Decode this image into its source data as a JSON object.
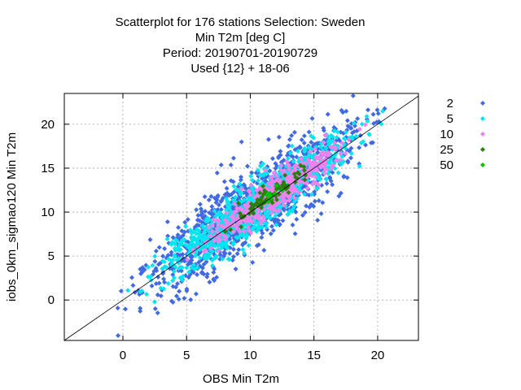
{
  "chart_data": {
    "type": "scatter",
    "title_lines": [
      "Scatterplot for  176 stations Selection: Sweden",
      "Min T2m [deg C]",
      "Period: 20190701-20190729",
      "Used {12} + 18-06"
    ],
    "xlabel": "OBS Min T2m",
    "ylabel": "iobs_0km_sigmao120 Min T2m",
    "xlim": [
      -4.6,
      23.2
    ],
    "ylim": [
      -4.6,
      23.5
    ],
    "xticks": [
      "0",
      "5",
      "10",
      "15",
      "20"
    ],
    "yticks": [
      "0",
      "5",
      "10",
      "15",
      "20"
    ],
    "grid": true,
    "diagonal_line": true,
    "legend_placement": "right",
    "series": [
      {
        "name": "2",
        "color": "#4169e1",
        "count": 1100,
        "x_range": [
          -2,
          22
        ],
        "spread": 2.2
      },
      {
        "name": "5",
        "color": "#00e5ee",
        "count": 900,
        "x_range": [
          -0.5,
          21.5
        ],
        "spread": 1.5
      },
      {
        "name": "10",
        "color": "#ee82ee",
        "count": 450,
        "x_range": [
          4,
          20
        ],
        "spread": 1.0
      },
      {
        "name": "25",
        "color": "#2e7d0a",
        "count": 80,
        "x_range": [
          7,
          16
        ],
        "spread": 0.6
      },
      {
        "name": "50",
        "color": "#00c400",
        "count": 10,
        "x_range": [
          9,
          14
        ],
        "spread": 0.4
      }
    ]
  }
}
